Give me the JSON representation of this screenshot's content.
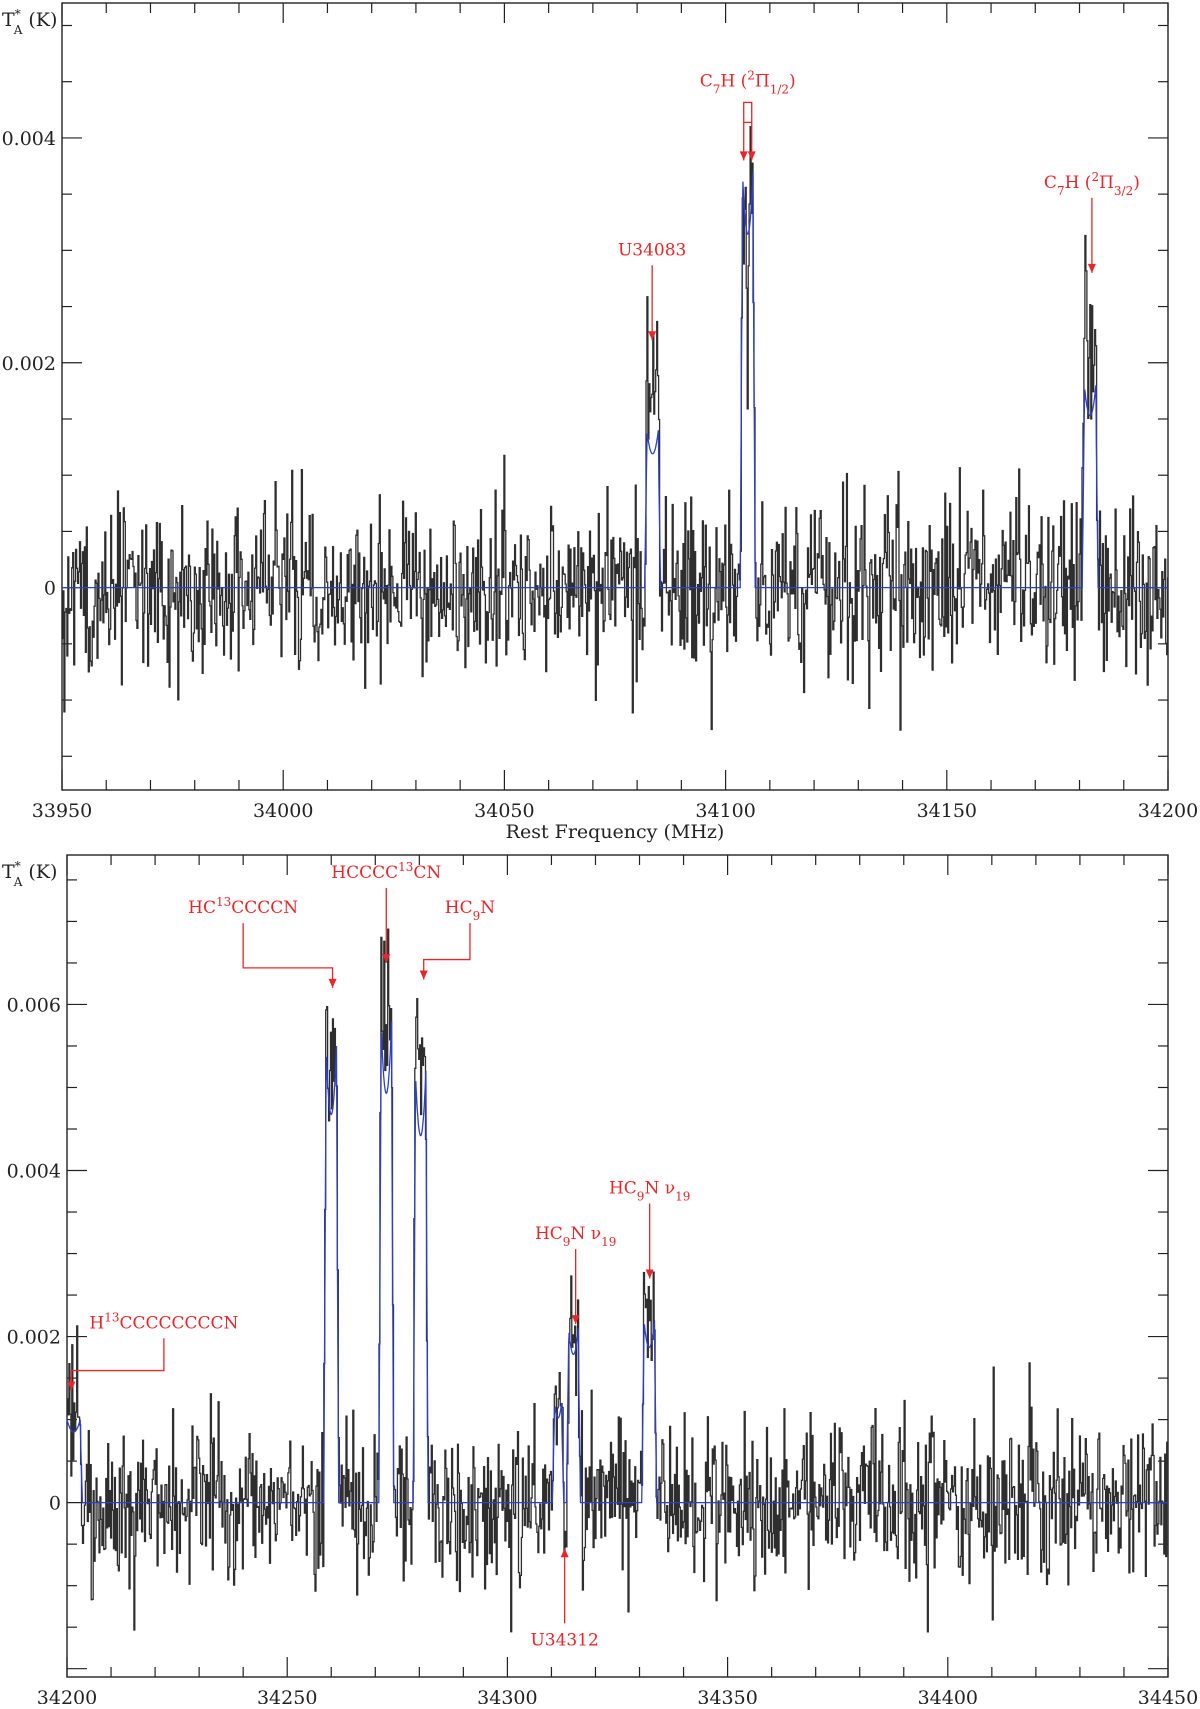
{
  "colors": {
    "spectrum": "#2e2e2e",
    "model": "#2f3fc8",
    "annotation": "#e8262a",
    "axes": "#222222"
  },
  "chart_data": [
    {
      "type": "line",
      "xlabel": "Rest Frequency (MHz)",
      "ylabel": {
        "main": "T",
        "sup": "*",
        "sub": "A",
        "unit": " (K)"
      },
      "xlim": [
        33950,
        34200
      ],
      "ylim": [
        -0.0018,
        0.0052
      ],
      "x_ticks": [
        "33950",
        "34000",
        "34050",
        "34100",
        "34150",
        "34200"
      ],
      "y_ticks": [
        "0.004",
        "0.002",
        "0"
      ],
      "grid": false,
      "noise_rms": 0.00035,
      "series": [
        {
          "name": "",
          "kind": "observed",
          "style": "histogram"
        },
        {
          "name": "",
          "kind": "model",
          "style": "line"
        }
      ],
      "lines": [
        {
          "center": 34083.5,
          "width": 2.6,
          "peak": 0.0014,
          "model_peak": 0.0014,
          "obs_peak": 0.0021
        },
        {
          "center": 34105.0,
          "width": 2.4,
          "peak": 0.0036,
          "model_peak": 0.0037,
          "obs_peak": 0.0037
        },
        {
          "center": 34182.4,
          "width": 2.6,
          "peak": 0.0018,
          "model_peak": 0.0018,
          "obs_peak": 0.0026
        }
      ],
      "annotations": [
        {
          "text": "U34083",
          "x": 34083.4,
          "y_arrow": 0.0022,
          "style": "straight"
        },
        {
          "text_parts": [
            [
              "C",
              "n"
            ],
            [
              "7",
              "sub"
            ],
            [
              "H (",
              "n"
            ],
            [
              "2",
              "sup"
            ],
            [
              "Π",
              "n"
            ],
            [
              "1/2",
              "sub"
            ],
            [
              ")",
              "n"
            ]
          ],
          "x": 34105.0,
          "y_arrow": 0.0038,
          "style": "double"
        },
        {
          "text_parts": [
            [
              "C",
              "n"
            ],
            [
              "7",
              "sub"
            ],
            [
              "H (",
              "n"
            ],
            [
              "2",
              "sup"
            ],
            [
              "Π",
              "n"
            ],
            [
              "3/2",
              "sub"
            ],
            [
              ")",
              "n"
            ]
          ],
          "x": 34182.8,
          "y_arrow": 0.0028,
          "style": "straight"
        }
      ]
    },
    {
      "type": "line",
      "xlabel": "Rest Frequency (MHz)",
      "ylabel": {
        "main": "T",
        "sup": "*",
        "sub": "A",
        "unit": " (K)"
      },
      "xlim": [
        34200,
        34450
      ],
      "ylim": [
        -0.0021,
        0.0078
      ],
      "x_ticks": [
        "34200",
        "34250",
        "34300",
        "34350",
        "34400",
        "34450"
      ],
      "y_ticks": [
        "0.006",
        "0.004",
        "0.002",
        "0"
      ],
      "grid": false,
      "noise_rms": 0.00045,
      "series": [
        {
          "name": "",
          "kind": "observed",
          "style": "histogram"
        },
        {
          "name": "",
          "kind": "model",
          "style": "line"
        }
      ],
      "lines": [
        {
          "center": 34201.5,
          "width": 3.0,
          "peak": 0.0009,
          "model_peak": 0.001,
          "obs_peak": 0.0011
        },
        {
          "center": 34260.0,
          "width": 2.4,
          "peak": 0.0051,
          "model_peak": 0.0055,
          "obs_peak": 0.006
        },
        {
          "center": 34272.5,
          "width": 2.4,
          "peak": 0.0055,
          "model_peak": 0.0058,
          "obs_peak": 0.0066
        },
        {
          "center": 34280.3,
          "width": 2.4,
          "peak": 0.005,
          "model_peak": 0.0052,
          "obs_peak": 0.0063
        },
        {
          "center": 34311.5,
          "width": 1.6,
          "peak": 0.0012,
          "model_peak": 0.0012,
          "obs_peak": 0.0013
        },
        {
          "center": 34315.0,
          "width": 2.2,
          "peak": 0.002,
          "model_peak": 0.0021,
          "obs_peak": 0.0022
        },
        {
          "center": 34332.2,
          "width": 2.4,
          "peak": 0.0021,
          "model_peak": 0.0022,
          "obs_peak": 0.0027
        }
      ],
      "annotations": [
        {
          "text_parts": [
            [
              "H",
              "n"
            ],
            [
              "13",
              "sup"
            ],
            [
              "CCCCCCCCN",
              "n"
            ]
          ],
          "x": 34201.0,
          "y_arrow": 0.00135,
          "style": "elbow-left",
          "label_x": 34222.0,
          "label_y": 0.0021
        },
        {
          "text_parts": [
            [
              "HC",
              "n"
            ],
            [
              "13",
              "sup"
            ],
            [
              "CCCCN",
              "n"
            ]
          ],
          "x": 34260.3,
          "y_arrow": 0.0062,
          "style": "elbow-right",
          "label_x": 34240.0,
          "label_y": 0.0071
        },
        {
          "text_parts": [
            [
              "HCCCC",
              "n"
            ],
            [
              "13",
              "sup"
            ],
            [
              "CN",
              "n"
            ]
          ],
          "x": 34272.5,
          "y_arrow": 0.0065,
          "style": "straight"
        },
        {
          "text_parts": [
            [
              "HC",
              "n"
            ],
            [
              "9",
              "sub"
            ],
            [
              "N",
              "n"
            ]
          ],
          "x": 34281.0,
          "y_arrow": 0.0063,
          "style": "elbow-left",
          "label_x": 34291.5,
          "label_y": 0.0071
        },
        {
          "text_parts": [
            [
              "HC",
              "n"
            ],
            [
              "9",
              "sub"
            ],
            [
              "N  ",
              "n"
            ],
            [
              "ν",
              "n"
            ],
            [
              "19",
              "sub"
            ]
          ],
          "x": 34315.5,
          "y_arrow": 0.00215,
          "style": "straight"
        },
        {
          "text_parts": [
            [
              "HC",
              "n"
            ],
            [
              "9",
              "sub"
            ],
            [
              "N  ",
              "n"
            ],
            [
              "ν",
              "n"
            ],
            [
              "19",
              "sub"
            ]
          ],
          "x": 34332.3,
          "y_arrow": 0.0027,
          "style": "straight"
        },
        {
          "text": "U34312",
          "x": 34313.0,
          "y_arrow": -0.00055,
          "style": "up"
        }
      ]
    }
  ]
}
